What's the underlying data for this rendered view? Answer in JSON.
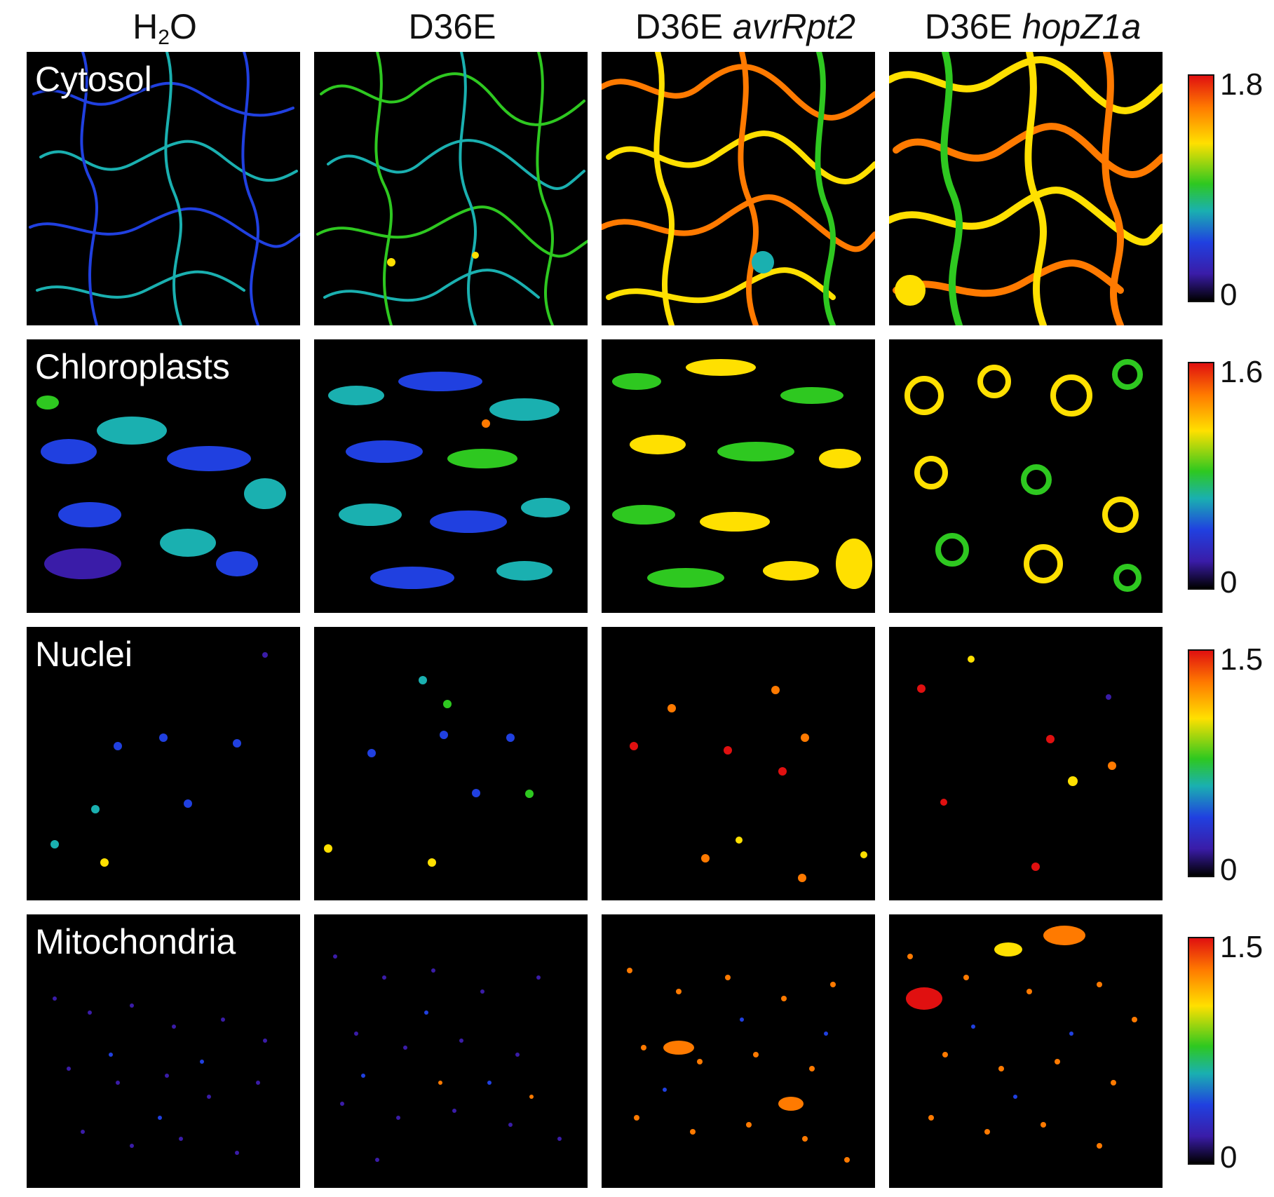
{
  "columns": [
    {
      "prefix": "H",
      "sub": "2",
      "suffix": "O",
      "italic": ""
    },
    {
      "prefix": "D36E",
      "sub": "",
      "suffix": "",
      "italic": ""
    },
    {
      "prefix": "D36E ",
      "sub": "",
      "suffix": "",
      "italic": "avrRpt2"
    },
    {
      "prefix": "D36E ",
      "sub": "",
      "suffix": "",
      "italic": "hopZ1a"
    }
  ],
  "rows": [
    {
      "label": "Cytosol",
      "scale_max": "1.8",
      "scale_min": "0"
    },
    {
      "label": "Chloroplasts",
      "scale_max": "1.6",
      "scale_min": "0"
    },
    {
      "label": "Nuclei",
      "scale_max": "1.5",
      "scale_min": "0"
    },
    {
      "label": "Mitochondria",
      "scale_max": "1.5",
      "scale_min": "0"
    }
  ],
  "colors": {
    "background": "#000000",
    "colormap": [
      "#000000",
      "#3a1ca8",
      "#2040e0",
      "#1ab0b0",
      "#2ec820",
      "#ffe000",
      "#ff7a00",
      "#e01010"
    ]
  }
}
